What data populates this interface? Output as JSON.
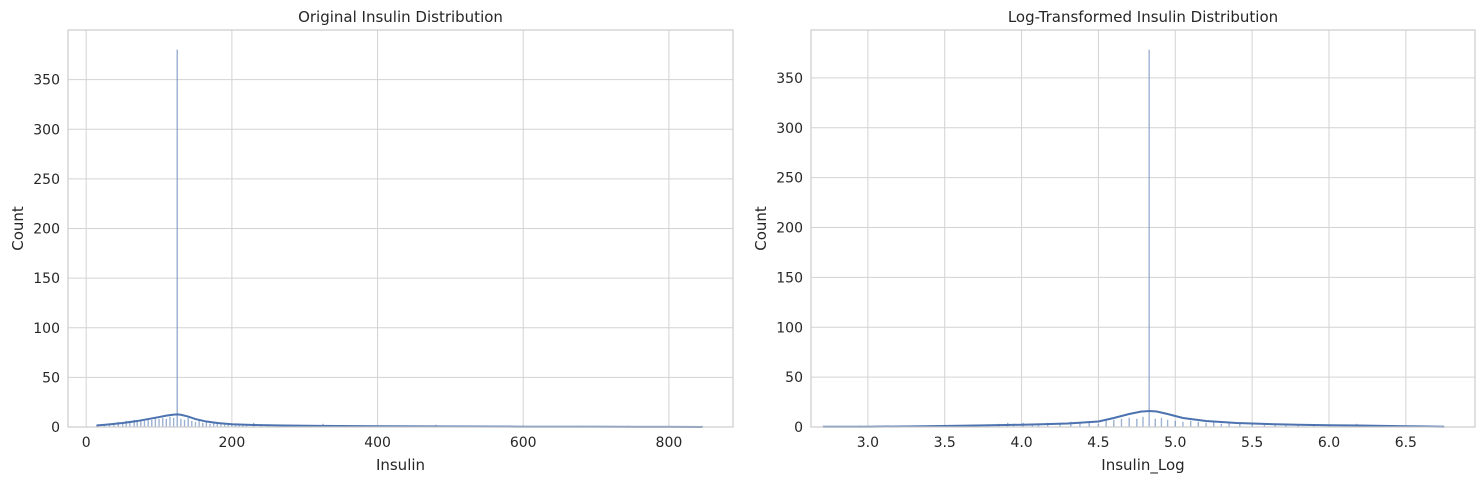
{
  "chart_data": [
    {
      "type": "histogram",
      "title": "Original Insulin Distribution",
      "xlabel": "Insulin",
      "ylabel": "Count",
      "xlim": [
        -25,
        888
      ],
      "ylim": [
        0,
        400
      ],
      "xticks": [
        0,
        200,
        400,
        600,
        800
      ],
      "yticks": [
        0,
        50,
        100,
        150,
        200,
        250,
        300,
        350
      ],
      "grid": true,
      "color": "#4c72b0",
      "bars": [
        {
          "x": 15,
          "count": 1
        },
        {
          "x": 25,
          "count": 1
        },
        {
          "x": 32,
          "count": 2
        },
        {
          "x": 38,
          "count": 3
        },
        {
          "x": 44,
          "count": 5
        },
        {
          "x": 50,
          "count": 4
        },
        {
          "x": 55,
          "count": 6
        },
        {
          "x": 60,
          "count": 5
        },
        {
          "x": 66,
          "count": 7
        },
        {
          "x": 70,
          "count": 5
        },
        {
          "x": 75,
          "count": 7
        },
        {
          "x": 80,
          "count": 6
        },
        {
          "x": 85,
          "count": 8
        },
        {
          "x": 90,
          "count": 7
        },
        {
          "x": 95,
          "count": 9
        },
        {
          "x": 100,
          "count": 8
        },
        {
          "x": 105,
          "count": 9
        },
        {
          "x": 110,
          "count": 8
        },
        {
          "x": 115,
          "count": 10
        },
        {
          "x": 120,
          "count": 9
        },
        {
          "x": 125,
          "count": 380
        },
        {
          "x": 130,
          "count": 8
        },
        {
          "x": 135,
          "count": 7
        },
        {
          "x": 140,
          "count": 9
        },
        {
          "x": 145,
          "count": 6
        },
        {
          "x": 150,
          "count": 5
        },
        {
          "x": 155,
          "count": 7
        },
        {
          "x": 160,
          "count": 4
        },
        {
          "x": 165,
          "count": 5
        },
        {
          "x": 170,
          "count": 3
        },
        {
          "x": 175,
          "count": 4
        },
        {
          "x": 180,
          "count": 5
        },
        {
          "x": 185,
          "count": 3
        },
        {
          "x": 190,
          "count": 3
        },
        {
          "x": 195,
          "count": 2
        },
        {
          "x": 200,
          "count": 3
        },
        {
          "x": 205,
          "count": 2
        },
        {
          "x": 210,
          "count": 3
        },
        {
          "x": 215,
          "count": 2
        },
        {
          "x": 220,
          "count": 2
        },
        {
          "x": 230,
          "count": 4
        },
        {
          "x": 240,
          "count": 2
        },
        {
          "x": 250,
          "count": 2
        },
        {
          "x": 260,
          "count": 1
        },
        {
          "x": 270,
          "count": 2
        },
        {
          "x": 280,
          "count": 2
        },
        {
          "x": 290,
          "count": 2
        },
        {
          "x": 300,
          "count": 1
        },
        {
          "x": 310,
          "count": 1
        },
        {
          "x": 325,
          "count": 3
        },
        {
          "x": 340,
          "count": 1
        },
        {
          "x": 360,
          "count": 1
        },
        {
          "x": 375,
          "count": 1
        },
        {
          "x": 390,
          "count": 1
        },
        {
          "x": 410,
          "count": 1
        },
        {
          "x": 440,
          "count": 1
        },
        {
          "x": 465,
          "count": 1
        },
        {
          "x": 480,
          "count": 2
        },
        {
          "x": 495,
          "count": 1
        },
        {
          "x": 510,
          "count": 1
        },
        {
          "x": 540,
          "count": 1
        },
        {
          "x": 545,
          "count": 1
        },
        {
          "x": 580,
          "count": 1
        },
        {
          "x": 600,
          "count": 1
        },
        {
          "x": 680,
          "count": 1
        },
        {
          "x": 745,
          "count": 1
        },
        {
          "x": 846,
          "count": 1
        }
      ],
      "kde": {
        "x": [
          14,
          30,
          50,
          70,
          85,
          100,
          110,
          120,
          125,
          130,
          140,
          150,
          165,
          180,
          200,
          230,
          270,
          320,
          400,
          500,
          600,
          700,
          800,
          846
        ],
        "y": [
          1.5,
          2.5,
          4,
          6,
          8,
          10,
          11.5,
          12.5,
          12.7,
          12.3,
          10.5,
          8,
          5.5,
          4,
          2.8,
          2,
          1.5,
          1.1,
          0.8,
          0.5,
          0.3,
          0.2,
          0.1,
          0.05
        ]
      }
    },
    {
      "type": "histogram",
      "title": "Log-Transformed Insulin Distribution",
      "xlabel": "Insulin_Log",
      "ylabel": "Count",
      "xlim": [
        2.63,
        6.95
      ],
      "ylim": [
        0,
        398
      ],
      "xticks": [
        3.0,
        3.5,
        4.0,
        4.5,
        5.0,
        5.5,
        6.0,
        6.5
      ],
      "xtick_labels": [
        "3.0",
        "3.5",
        "4.0",
        "4.5",
        "5.0",
        "5.5",
        "6.0",
        "6.5"
      ],
      "yticks": [
        0,
        50,
        100,
        150,
        200,
        250,
        300,
        350
      ],
      "grid": true,
      "color": "#4c72b0",
      "bars": [
        {
          "x": 2.71,
          "count": 1
        },
        {
          "x": 2.95,
          "count": 1
        },
        {
          "x": 3.18,
          "count": 1
        },
        {
          "x": 3.4,
          "count": 1
        },
        {
          "x": 3.55,
          "count": 1
        },
        {
          "x": 3.6,
          "count": 2
        },
        {
          "x": 3.7,
          "count": 2
        },
        {
          "x": 3.78,
          "count": 2
        },
        {
          "x": 3.85,
          "count": 3
        },
        {
          "x": 3.91,
          "count": 4
        },
        {
          "x": 3.95,
          "count": 3
        },
        {
          "x": 4.01,
          "count": 4
        },
        {
          "x": 4.07,
          "count": 3
        },
        {
          "x": 4.11,
          "count": 2
        },
        {
          "x": 4.17,
          "count": 4
        },
        {
          "x": 4.25,
          "count": 4
        },
        {
          "x": 4.32,
          "count": 5
        },
        {
          "x": 4.38,
          "count": 4
        },
        {
          "x": 4.44,
          "count": 5
        },
        {
          "x": 4.5,
          "count": 3
        },
        {
          "x": 4.55,
          "count": 6
        },
        {
          "x": 4.6,
          "count": 7
        },
        {
          "x": 4.65,
          "count": 8
        },
        {
          "x": 4.7,
          "count": 9
        },
        {
          "x": 4.75,
          "count": 8
        },
        {
          "x": 4.79,
          "count": 10
        },
        {
          "x": 4.83,
          "count": 378
        },
        {
          "x": 4.87,
          "count": 8
        },
        {
          "x": 4.91,
          "count": 9
        },
        {
          "x": 4.95,
          "count": 7
        },
        {
          "x": 5.0,
          "count": 6
        },
        {
          "x": 5.05,
          "count": 5
        },
        {
          "x": 5.1,
          "count": 6
        },
        {
          "x": 5.15,
          "count": 5
        },
        {
          "x": 5.2,
          "count": 4
        },
        {
          "x": 5.25,
          "count": 5
        },
        {
          "x": 5.3,
          "count": 3
        },
        {
          "x": 5.35,
          "count": 4
        },
        {
          "x": 5.42,
          "count": 3
        },
        {
          "x": 5.5,
          "count": 3
        },
        {
          "x": 5.58,
          "count": 2
        },
        {
          "x": 5.65,
          "count": 2
        },
        {
          "x": 5.72,
          "count": 2
        },
        {
          "x": 5.8,
          "count": 2
        },
        {
          "x": 5.9,
          "count": 1
        },
        {
          "x": 6.0,
          "count": 1
        },
        {
          "x": 6.1,
          "count": 2
        },
        {
          "x": 6.18,
          "count": 3
        },
        {
          "x": 6.3,
          "count": 1
        },
        {
          "x": 6.45,
          "count": 1
        },
        {
          "x": 6.6,
          "count": 1
        },
        {
          "x": 6.74,
          "count": 1
        }
      ],
      "kde": {
        "x": [
          2.71,
          3.0,
          3.3,
          3.6,
          3.9,
          4.1,
          4.3,
          4.5,
          4.6,
          4.7,
          4.78,
          4.83,
          4.88,
          4.95,
          5.05,
          5.2,
          5.4,
          5.6,
          5.8,
          6.0,
          6.2,
          6.4,
          6.6,
          6.75
        ],
        "y": [
          0.2,
          0.3,
          0.6,
          1.2,
          2,
          2.6,
          3.5,
          5.5,
          9,
          13,
          15.5,
          16,
          15.5,
          13,
          9,
          6,
          4,
          3,
          2.2,
          1.8,
          1.5,
          1,
          0.6,
          0.3
        ]
      }
    }
  ]
}
